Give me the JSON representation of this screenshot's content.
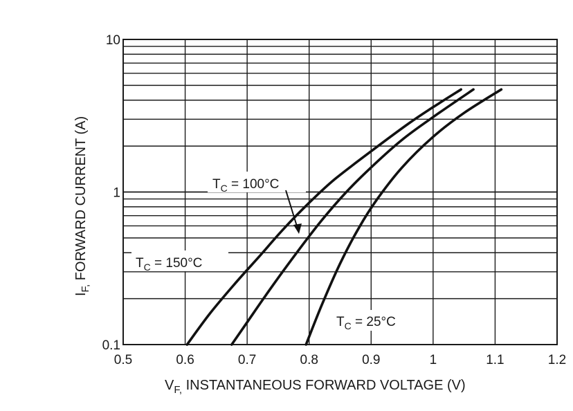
{
  "chart_data": {
    "type": "line",
    "title": "",
    "xlabel": "V",
    "xlabel_sub": "F,",
    "xlabel_rest": " INSTANTANEOUS FORWARD VOLTAGE (V)",
    "ylabel": "I",
    "ylabel_sub": "F,",
    "ylabel_rest": " FORWARD CURRENT (A)",
    "xlim": [
      0.5,
      1.2
    ],
    "ylim": [
      0.1,
      10
    ],
    "yscale": "log",
    "grid": true,
    "x_ticks": [
      "0.5",
      "0.6",
      "0.7",
      "0.8",
      "0.9",
      "1",
      "1.1",
      "1.2"
    ],
    "y_ticks": [
      "0.1",
      "1",
      "10"
    ],
    "annotations": [
      {
        "prefix": "T",
        "sub": "C",
        "text": " = 100°C"
      },
      {
        "prefix": "T",
        "sub": "C",
        "text": " = 150°C"
      },
      {
        "prefix": "T",
        "sub": "C",
        "text": " = 25°C"
      }
    ],
    "series": [
      {
        "name": "TC = 150°C",
        "x": [
          0.603,
          0.64,
          0.68,
          0.72,
          0.76,
          0.8,
          0.84,
          0.9,
          0.96,
          1.0,
          1.045
        ],
        "y": [
          0.1,
          0.16,
          0.25,
          0.38,
          0.58,
          0.85,
          1.2,
          1.85,
          2.8,
          3.6,
          4.7
        ]
      },
      {
        "name": "TC = 100°C",
        "x": [
          0.675,
          0.7,
          0.74,
          0.78,
          0.82,
          0.86,
          0.9,
          0.95,
          1.0,
          1.065
        ],
        "y": [
          0.1,
          0.14,
          0.24,
          0.4,
          0.65,
          1.0,
          1.45,
          2.2,
          3.1,
          4.7
        ]
      },
      {
        "name": "TC = 25°C",
        "x": [
          0.795,
          0.82,
          0.85,
          0.88,
          0.91,
          0.95,
          1.0,
          1.05,
          1.11
        ],
        "y": [
          0.1,
          0.18,
          0.34,
          0.58,
          0.9,
          1.45,
          2.3,
          3.3,
          4.7
        ]
      }
    ]
  }
}
